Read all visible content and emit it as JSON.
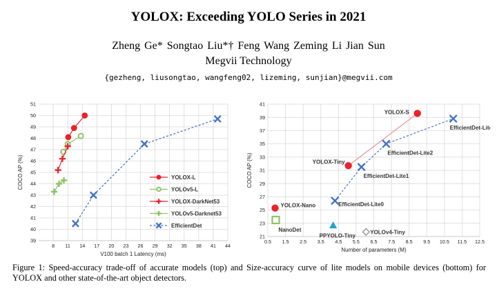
{
  "paper": {
    "title": "YOLOX: Exceeding YOLO Series in 2021",
    "authors": "Zheng Ge*   Songtao Liu*†   Feng Wang   Zeming Li   Jian Sun",
    "affiliation": "Megvii Technology",
    "emails": "{gezheng, liusongtao, wangfeng02, lizeming, sunjian}@megvii.com",
    "caption": "Figure 1: Speed-accuracy trade-off of accurate models (top) and Size-accuracy curve of lite models on mobile devices (bottom) for YOLOX and other state-of-the-art object detectors."
  },
  "chart_data": [
    {
      "type": "line",
      "xlabel": "V100 batch 1 Latency (ms)",
      "ylabel": "COCO AP (%)",
      "xlim": [
        5,
        44
      ],
      "ylim": [
        39,
        51
      ],
      "xticks": [
        8,
        11,
        14,
        17,
        20,
        23,
        26,
        29,
        32,
        35,
        38,
        41,
        44
      ],
      "yticks": [
        39,
        40,
        41,
        42,
        43,
        44,
        45,
        46,
        47,
        48,
        49,
        50,
        51
      ],
      "grid": true,
      "legend_position": "bottom-right",
      "series": [
        {
          "name": "YOLOX-L",
          "color": "#e8232a",
          "marker": "circle",
          "line": "solid",
          "x": [
            11.1,
            12.3,
            14.5
          ],
          "y": [
            48.1,
            48.9,
            50.0
          ]
        },
        {
          "name": "YOLOv5-L",
          "color": "#8dc363",
          "marker": "open-circle",
          "line": "solid",
          "x": [
            10.1,
            11.0,
            13.7
          ],
          "y": [
            46.8,
            47.5,
            48.2
          ]
        },
        {
          "name": "YOLOX-DarkNet53",
          "color": "#e8232a",
          "marker": "plus",
          "line": "solid",
          "x": [
            9.0,
            9.9,
            11.0
          ],
          "y": [
            45.2,
            46.2,
            47.3
          ]
        },
        {
          "name": "YOLOv5-Darknet53",
          "color": "#8dc363",
          "marker": "plus",
          "line": "solid",
          "x": [
            8.2,
            9.2,
            10.2
          ],
          "y": [
            43.3,
            44.0,
            44.3
          ]
        },
        {
          "name": "EfficientDet",
          "color": "#4472c4",
          "marker": "x",
          "line": "dashed",
          "x": [
            12.6,
            16.3,
            26.8,
            41.9
          ],
          "y": [
            40.5,
            43.0,
            47.5,
            49.7
          ]
        }
      ]
    },
    {
      "type": "line",
      "xlabel": "Number of parameters (M)",
      "ylabel": "COCO AP (%)",
      "xlim": [
        0.5,
        12.5
      ],
      "ylim": [
        21,
        41
      ],
      "xticks": [
        0.5,
        1.5,
        2.5,
        3.5,
        4.5,
        5.5,
        6.5,
        7.5,
        8.5,
        9.5,
        10.5,
        11.5,
        12.5
      ],
      "yticks": [
        21,
        23,
        25,
        27,
        29,
        31,
        33,
        35,
        37,
        39,
        41
      ],
      "grid": true,
      "series": [
        {
          "name": "YOLOX",
          "color": "#e8232a",
          "marker": "circle",
          "line": "solid",
          "points": [
            {
              "label": "YOLOX-Tiny",
              "x": 5.06,
              "y": 31.7
            },
            {
              "label": "YOLOX-S",
              "x": 8.97,
              "y": 39.6
            }
          ]
        },
        {
          "name": "EfficientDet",
          "color": "#4472c4",
          "marker": "x",
          "line": "dashed",
          "points": [
            {
              "label": "EfficientDet-Lite0",
              "x": 4.3,
              "y": 26.4
            },
            {
              "label": "EfficientDet-Lite1",
              "x": 5.8,
              "y": 31.5
            },
            {
              "label": "EfficientDet-Lite2",
              "x": 7.2,
              "y": 35.0
            },
            {
              "label": "EfficientDet-Lite3",
              "x": 11.0,
              "y": 38.8
            }
          ]
        },
        {
          "name": "YOLOX-Nano",
          "color": "#e8232a",
          "marker": "circle",
          "points": [
            {
              "label": "YOLOX-Nano",
              "x": 0.91,
              "y": 25.3
            }
          ]
        },
        {
          "name": "NanoDet",
          "color": "#8dc363",
          "marker": "open-square",
          "points": [
            {
              "label": "NanoDet",
              "x": 0.95,
              "y": 23.5
            }
          ]
        },
        {
          "name": "PPYOLO-Tiny",
          "color": "#1ea0d6",
          "marker": "triangle",
          "points": [
            {
              "label": "PPYOLO-Tiny",
              "x": 4.2,
              "y": 22.7
            }
          ]
        },
        {
          "name": "YOLOv4-Tiny",
          "color": "#a6a6a6",
          "marker": "open-diamond",
          "points": [
            {
              "label": "YOLOv4-Tiny",
              "x": 6.06,
              "y": 21.7
            }
          ]
        }
      ]
    }
  ]
}
